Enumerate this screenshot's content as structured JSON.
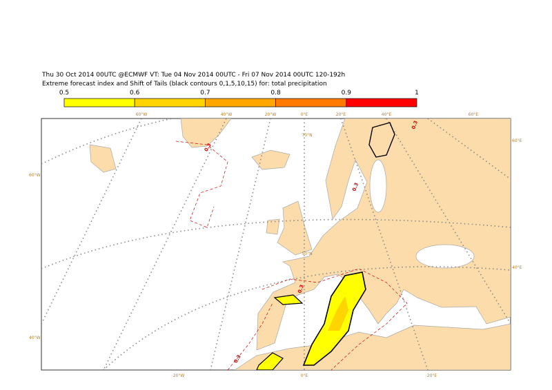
{
  "header": {
    "line1": "Thu 30 Oct 2014 00UTC @ECMWF VT: Tue 04 Nov 2014 00UTC - Fri 07 Nov 2014 00UTC  120-192h",
    "line2": "Extreme forecast index and Shift of Tails (black contours 0,1,5,10,15) for: total precipitation"
  },
  "colorbar": {
    "ticks": [
      0.5,
      0.6,
      0.7,
      0.8,
      0.9,
      1
    ],
    "colors": [
      "#ffff00",
      "#ffd400",
      "#ffa600",
      "#ff7a00",
      "#ff0000"
    ]
  },
  "graticule_labels": {
    "top": [
      "60°W",
      "40°W",
      "20°W",
      "0°E",
      "20°E",
      "40°E",
      "60°E"
    ],
    "left": [
      "60°W",
      "40°W"
    ],
    "right": [
      "60°E",
      "40°E"
    ],
    "bottom": [
      "20°W",
      "0°E",
      "20°E"
    ],
    "inner": [
      "70°N",
      "50°N"
    ]
  },
  "contour_labels": [
    "0.3",
    "0.3",
    "0.3",
    "0.3",
    "0.3"
  ]
}
